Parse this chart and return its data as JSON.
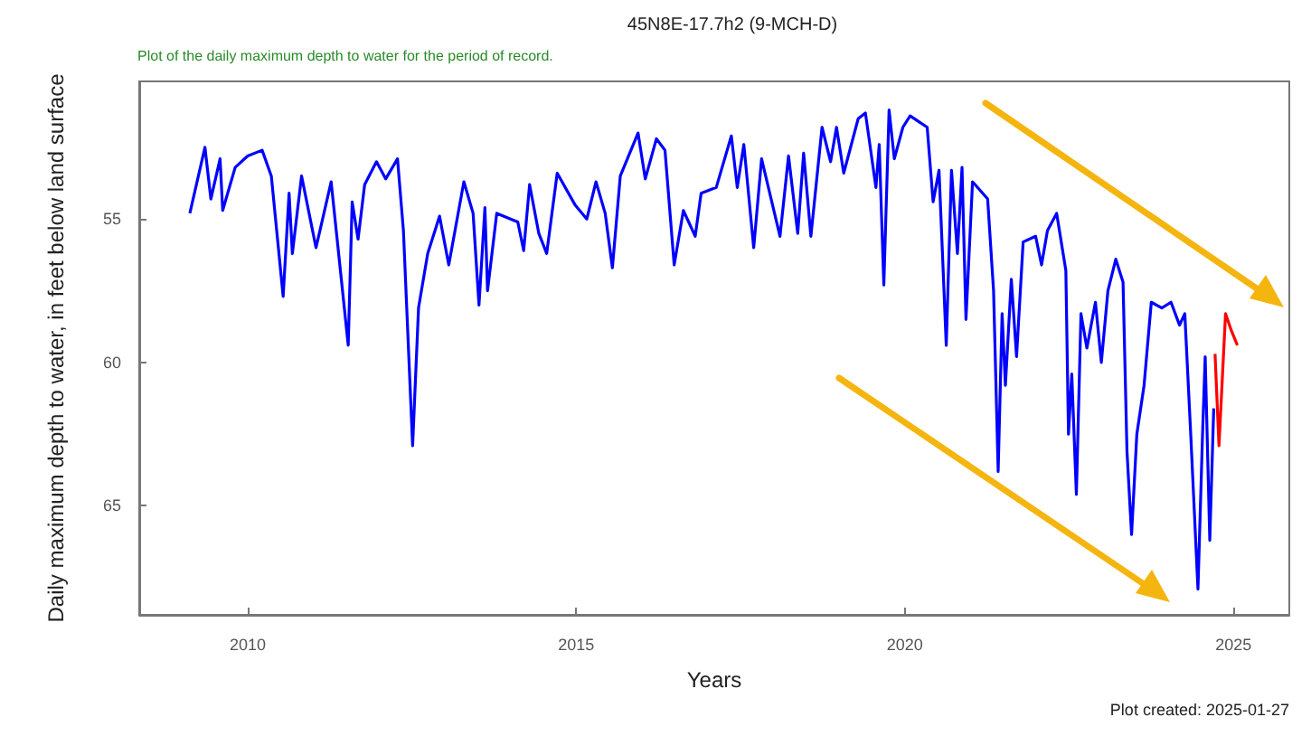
{
  "chart_data": {
    "type": "line",
    "title": "45N8E-17.7h2 (9-MCH-D)",
    "subtitle": "Plot of the daily maximum depth to water for the period of record.",
    "xlabel": "Years",
    "ylabel": "Daily maximum depth to water, in feet below land surface",
    "annotations": [
      "Plot created: 2025-01-27"
    ],
    "xlim": [
      2008.35,
      2025.85
    ],
    "xticks": [
      2010,
      2015,
      2020,
      2025
    ],
    "ylim": [
      68.8,
      50.2
    ],
    "yticks": [
      55,
      60,
      65
    ],
    "grid": false,
    "marker": "none",
    "line_style": "solid",
    "series": [
      {
        "color": "#0000ff",
        "x": [
          2009.12,
          2009.35,
          2009.44,
          2009.58,
          2009.62,
          2009.81,
          2010.0,
          2010.22,
          2010.36,
          2010.54,
          2010.63,
          2010.68,
          2010.82,
          2011.04,
          2011.27,
          2011.53,
          2011.59,
          2011.68,
          2011.78,
          2011.96,
          2012.1,
          2012.28,
          2012.37,
          2012.51,
          2012.6,
          2012.74,
          2012.92,
          2013.06,
          2013.29,
          2013.43,
          2013.52,
          2013.61,
          2013.65,
          2013.79,
          2014.11,
          2014.2,
          2014.29,
          2014.43,
          2014.55,
          2014.71,
          2014.98,
          2015.16,
          2015.3,
          2015.44,
          2015.55,
          2015.67,
          2015.94,
          2016.05,
          2016.22,
          2016.35,
          2016.49,
          2016.63,
          2016.81,
          2016.9,
          2017.13,
          2017.36,
          2017.45,
          2017.55,
          2017.7,
          2017.82,
          2018.1,
          2018.23,
          2018.37,
          2018.46,
          2018.57,
          2018.74,
          2018.87,
          2018.96,
          2019.07,
          2019.29,
          2019.4,
          2019.56,
          2019.61,
          2019.68,
          2019.76,
          2019.84,
          2019.97,
          2020.08,
          2020.34,
          2020.43,
          2020.52,
          2020.63,
          2020.71,
          2020.8,
          2020.87,
          2020.93,
          2021.03,
          2021.26,
          2021.35,
          2021.42,
          2021.48,
          2021.53,
          2021.62,
          2021.7,
          2021.8,
          2021.99,
          2022.08,
          2022.17,
          2022.31,
          2022.45,
          2022.49,
          2022.54,
          2022.61,
          2022.68,
          2022.77,
          2022.9,
          2022.99,
          2023.09,
          2023.21,
          2023.32,
          2023.38,
          2023.45,
          2023.53,
          2023.64,
          2023.75,
          2023.91,
          2024.05,
          2024.18,
          2024.26,
          2024.35,
          2024.46,
          2024.53,
          2024.57,
          2024.64,
          2024.7
        ],
        "values": [
          54.8,
          52.5,
          54.3,
          52.9,
          54.7,
          53.2,
          52.8,
          52.6,
          53.5,
          57.7,
          54.1,
          56.2,
          53.5,
          56.0,
          53.7,
          59.4,
          54.4,
          55.7,
          53.8,
          53.0,
          53.6,
          52.9,
          55.4,
          62.9,
          58.1,
          56.2,
          54.9,
          56.6,
          53.7,
          54.8,
          58.0,
          54.6,
          57.5,
          54.8,
          55.1,
          56.1,
          53.8,
          55.5,
          56.2,
          53.4,
          54.5,
          55.0,
          53.7,
          54.8,
          56.7,
          53.5,
          52.0,
          53.6,
          52.2,
          52.6,
          56.6,
          54.7,
          55.6,
          54.1,
          53.9,
          52.1,
          53.9,
          52.4,
          56.0,
          52.9,
          55.6,
          52.8,
          55.5,
          52.7,
          55.6,
          51.8,
          53.0,
          51.8,
          53.4,
          51.5,
          51.3,
          53.9,
          52.4,
          57.3,
          51.2,
          52.9,
          51.8,
          51.4,
          51.8,
          54.4,
          53.3,
          59.4,
          53.3,
          56.2,
          53.2,
          58.5,
          53.7,
          54.3,
          57.5,
          63.8,
          58.3,
          60.8,
          57.1,
          59.8,
          55.8,
          55.6,
          56.6,
          55.4,
          54.8,
          56.8,
          62.5,
          60.4,
          64.6,
          58.3,
          59.5,
          57.9,
          60.0,
          57.5,
          56.4,
          57.2,
          63.1,
          66.0,
          62.5,
          60.8,
          57.9,
          58.1,
          57.9,
          58.7,
          58.3,
          62.5,
          67.9,
          62.5,
          59.8,
          66.2,
          61.6
        ]
      },
      {
        "color": "#ff0000",
        "x": [
          2024.72,
          2024.78,
          2024.88,
          2024.97,
          2025.06
        ],
        "values": [
          59.7,
          62.9,
          58.3,
          58.9,
          59.4
        ]
      }
    ]
  }
}
